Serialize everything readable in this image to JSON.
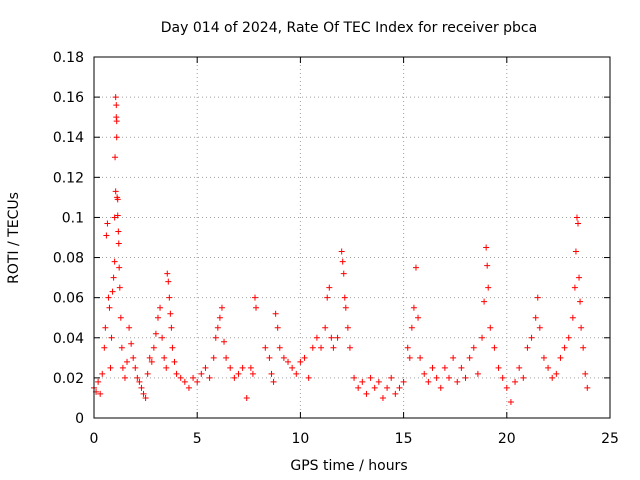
{
  "chart_data": {
    "type": "scatter",
    "title": "Day 014 of 2024, Rate Of TEC Index for receiver pbca",
    "xlabel": "GPS time / hours",
    "ylabel": "ROTI / TECUs",
    "xlim": [
      0,
      25
    ],
    "ylim": [
      0,
      0.18
    ],
    "x_ticks": [
      0,
      5,
      10,
      15,
      20,
      25
    ],
    "y_ticks": [
      0,
      0.02,
      0.04,
      0.06,
      0.08,
      0.1,
      0.12,
      0.14,
      0.16,
      0.18
    ],
    "x_tick_labels": [
      "0",
      "5",
      "10",
      "15",
      "20",
      "25"
    ],
    "y_tick_labels": [
      "0",
      "0.02",
      "0.04",
      "0.06",
      "0.08",
      "0.1",
      "0.12",
      "0.14",
      "0.16",
      "0.18"
    ],
    "grid": true,
    "marker": "+",
    "color": "#ff0000",
    "series": [
      {
        "name": "ROTI",
        "points": [
          [
            0.0,
            0.015
          ],
          [
            0.1,
            0.013
          ],
          [
            0.2,
            0.018
          ],
          [
            0.3,
            0.012
          ],
          [
            0.4,
            0.022
          ],
          [
            0.5,
            0.035
          ],
          [
            0.55,
            0.045
          ],
          [
            0.6,
            0.091
          ],
          [
            0.65,
            0.097
          ],
          [
            0.7,
            0.06
          ],
          [
            0.75,
            0.055
          ],
          [
            0.8,
            0.025
          ],
          [
            0.85,
            0.04
          ],
          [
            0.9,
            0.063
          ],
          [
            0.95,
            0.07
          ],
          [
            1.0,
            0.078
          ],
          [
            1.0,
            0.1
          ],
          [
            1.02,
            0.13
          ],
          [
            1.05,
            0.113
          ],
          [
            1.05,
            0.16
          ],
          [
            1.08,
            0.156
          ],
          [
            1.08,
            0.15
          ],
          [
            1.1,
            0.14
          ],
          [
            1.1,
            0.148
          ],
          [
            1.12,
            0.11
          ],
          [
            1.15,
            0.109
          ],
          [
            1.15,
            0.101
          ],
          [
            1.18,
            0.093
          ],
          [
            1.2,
            0.087
          ],
          [
            1.22,
            0.075
          ],
          [
            1.25,
            0.065
          ],
          [
            1.3,
            0.05
          ],
          [
            1.35,
            0.035
          ],
          [
            1.4,
            0.025
          ],
          [
            1.5,
            0.02
          ],
          [
            1.6,
            0.028
          ],
          [
            1.7,
            0.045
          ],
          [
            1.8,
            0.037
          ],
          [
            1.9,
            0.03
          ],
          [
            2.0,
            0.025
          ],
          [
            2.1,
            0.02
          ],
          [
            2.2,
            0.018
          ],
          [
            2.3,
            0.015
          ],
          [
            2.4,
            0.012
          ],
          [
            2.5,
            0.01
          ],
          [
            2.6,
            0.022
          ],
          [
            2.7,
            0.03
          ],
          [
            2.8,
            0.028
          ],
          [
            2.9,
            0.035
          ],
          [
            3.0,
            0.042
          ],
          [
            3.1,
            0.05
          ],
          [
            3.2,
            0.055
          ],
          [
            3.3,
            0.04
          ],
          [
            3.4,
            0.03
          ],
          [
            3.5,
            0.025
          ],
          [
            3.55,
            0.072
          ],
          [
            3.6,
            0.068
          ],
          [
            3.65,
            0.06
          ],
          [
            3.7,
            0.052
          ],
          [
            3.75,
            0.045
          ],
          [
            3.8,
            0.035
          ],
          [
            3.9,
            0.028
          ],
          [
            4.0,
            0.022
          ],
          [
            4.2,
            0.02
          ],
          [
            4.4,
            0.018
          ],
          [
            4.6,
            0.015
          ],
          [
            4.8,
            0.02
          ],
          [
            5.0,
            0.018
          ],
          [
            5.2,
            0.022
          ],
          [
            5.4,
            0.025
          ],
          [
            5.6,
            0.02
          ],
          [
            5.8,
            0.03
          ],
          [
            5.9,
            0.04
          ],
          [
            6.0,
            0.045
          ],
          [
            6.1,
            0.05
          ],
          [
            6.2,
            0.055
          ],
          [
            6.3,
            0.038
          ],
          [
            6.4,
            0.03
          ],
          [
            6.6,
            0.025
          ],
          [
            6.8,
            0.02
          ],
          [
            7.0,
            0.022
          ],
          [
            7.2,
            0.025
          ],
          [
            7.4,
            0.01
          ],
          [
            7.6,
            0.025
          ],
          [
            7.7,
            0.022
          ],
          [
            7.8,
            0.06
          ],
          [
            7.85,
            0.055
          ],
          [
            8.3,
            0.035
          ],
          [
            8.5,
            0.03
          ],
          [
            8.6,
            0.022
          ],
          [
            8.7,
            0.018
          ],
          [
            8.8,
            0.052
          ],
          [
            8.9,
            0.045
          ],
          [
            9.0,
            0.035
          ],
          [
            9.2,
            0.03
          ],
          [
            9.4,
            0.028
          ],
          [
            9.6,
            0.025
          ],
          [
            9.8,
            0.022
          ],
          [
            10.0,
            0.028
          ],
          [
            10.2,
            0.03
          ],
          [
            10.4,
            0.02
          ],
          [
            10.6,
            0.035
          ],
          [
            10.8,
            0.04
          ],
          [
            11.0,
            0.035
          ],
          [
            11.2,
            0.045
          ],
          [
            11.3,
            0.06
          ],
          [
            11.4,
            0.065
          ],
          [
            11.5,
            0.04
          ],
          [
            11.6,
            0.035
          ],
          [
            11.8,
            0.04
          ],
          [
            12.0,
            0.083
          ],
          [
            12.05,
            0.078
          ],
          [
            12.1,
            0.072
          ],
          [
            12.15,
            0.06
          ],
          [
            12.2,
            0.055
          ],
          [
            12.3,
            0.045
          ],
          [
            12.4,
            0.035
          ],
          [
            12.6,
            0.02
          ],
          [
            12.8,
            0.015
          ],
          [
            13.0,
            0.018
          ],
          [
            13.2,
            0.012
          ],
          [
            13.4,
            0.02
          ],
          [
            13.6,
            0.015
          ],
          [
            13.8,
            0.018
          ],
          [
            14.0,
            0.01
          ],
          [
            14.2,
            0.015
          ],
          [
            14.4,
            0.02
          ],
          [
            14.6,
            0.012
          ],
          [
            14.8,
            0.015
          ],
          [
            15.0,
            0.018
          ],
          [
            15.2,
            0.035
          ],
          [
            15.3,
            0.03
          ],
          [
            15.4,
            0.045
          ],
          [
            15.5,
            0.055
          ],
          [
            15.6,
            0.075
          ],
          [
            15.7,
            0.05
          ],
          [
            15.8,
            0.03
          ],
          [
            16.0,
            0.022
          ],
          [
            16.2,
            0.018
          ],
          [
            16.4,
            0.025
          ],
          [
            16.6,
            0.02
          ],
          [
            16.8,
            0.015
          ],
          [
            17.0,
            0.025
          ],
          [
            17.2,
            0.02
          ],
          [
            17.4,
            0.03
          ],
          [
            17.6,
            0.018
          ],
          [
            17.8,
            0.025
          ],
          [
            18.0,
            0.02
          ],
          [
            18.2,
            0.03
          ],
          [
            18.4,
            0.035
          ],
          [
            18.6,
            0.022
          ],
          [
            18.8,
            0.04
          ],
          [
            18.9,
            0.058
          ],
          [
            19.0,
            0.085
          ],
          [
            19.05,
            0.076
          ],
          [
            19.1,
            0.065
          ],
          [
            19.2,
            0.045
          ],
          [
            19.4,
            0.035
          ],
          [
            19.6,
            0.025
          ],
          [
            19.8,
            0.02
          ],
          [
            20.0,
            0.015
          ],
          [
            20.2,
            0.008
          ],
          [
            20.4,
            0.018
          ],
          [
            20.6,
            0.025
          ],
          [
            20.8,
            0.02
          ],
          [
            21.0,
            0.035
          ],
          [
            21.2,
            0.04
          ],
          [
            21.4,
            0.05
          ],
          [
            21.5,
            0.06
          ],
          [
            21.6,
            0.045
          ],
          [
            21.8,
            0.03
          ],
          [
            22.0,
            0.025
          ],
          [
            22.2,
            0.02
          ],
          [
            22.4,
            0.022
          ],
          [
            22.6,
            0.03
          ],
          [
            22.8,
            0.035
          ],
          [
            23.0,
            0.04
          ],
          [
            23.2,
            0.05
          ],
          [
            23.3,
            0.065
          ],
          [
            23.35,
            0.083
          ],
          [
            23.4,
            0.1
          ],
          [
            23.45,
            0.097
          ],
          [
            23.5,
            0.07
          ],
          [
            23.55,
            0.058
          ],
          [
            23.6,
            0.045
          ],
          [
            23.7,
            0.035
          ],
          [
            23.8,
            0.022
          ],
          [
            23.9,
            0.015
          ]
        ]
      }
    ]
  }
}
